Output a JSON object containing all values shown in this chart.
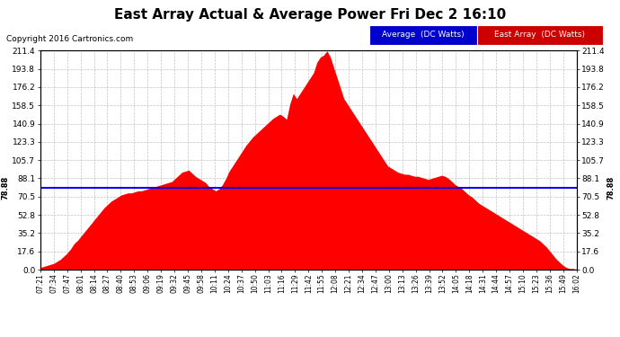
{
  "title": "East Array Actual & Average Power Fri Dec 2 16:10",
  "copyright": "Copyright 2016 Cartronics.com",
  "legend_label_avg": "Average  (DC Watts)",
  "legend_label_east": "East Array  (DC Watts)",
  "legend_color_avg": "#0000cc",
  "legend_color_east": "#cc0000",
  "avg_line_value": 78.88,
  "avg_line_label": "78.88",
  "y_ticks": [
    0.0,
    17.6,
    35.2,
    52.8,
    70.5,
    88.1,
    105.7,
    123.3,
    140.9,
    158.5,
    176.2,
    193.8,
    211.4
  ],
  "y_max": 211.4,
  "y_min": 0,
  "background_color": "#ffffff",
  "fill_color": "#ff0000",
  "avg_line_color": "#0000ff",
  "grid_color": "#bbbbbb",
  "title_fontsize": 11,
  "x_tick_labels": [
    "07:21",
    "07:34",
    "07:47",
    "08:01",
    "08:14",
    "08:27",
    "08:40",
    "08:53",
    "09:06",
    "09:19",
    "09:32",
    "09:45",
    "09:58",
    "10:11",
    "10:24",
    "10:37",
    "10:50",
    "11:03",
    "11:16",
    "11:29",
    "11:42",
    "11:55",
    "12:08",
    "12:21",
    "12:34",
    "12:47",
    "13:00",
    "13:13",
    "13:26",
    "13:39",
    "13:52",
    "14:05",
    "14:18",
    "14:31",
    "14:44",
    "14:57",
    "15:10",
    "15:23",
    "15:36",
    "15:49",
    "16:02"
  ],
  "power_values": [
    2,
    3,
    4,
    5,
    6,
    8,
    10,
    13,
    16,
    20,
    25,
    28,
    32,
    36,
    40,
    44,
    48,
    52,
    56,
    60,
    63,
    66,
    68,
    70,
    72,
    73,
    74,
    74,
    75,
    76,
    76,
    77,
    78,
    79,
    80,
    81,
    82,
    83,
    84,
    85,
    88,
    91,
    94,
    95,
    96,
    93,
    90,
    88,
    86,
    84,
    80,
    78,
    76,
    78,
    82,
    88,
    95,
    100,
    105,
    110,
    115,
    120,
    124,
    128,
    131,
    134,
    137,
    140,
    143,
    146,
    148,
    150,
    148,
    145,
    160,
    170,
    165,
    170,
    175,
    180,
    185,
    190,
    200,
    205,
    207,
    211,
    205,
    195,
    185,
    175,
    165,
    160,
    155,
    150,
    145,
    140,
    135,
    130,
    125,
    120,
    115,
    110,
    105,
    100,
    98,
    96,
    94,
    93,
    92,
    92,
    91,
    90,
    90,
    89,
    88,
    87,
    88,
    89,
    90,
    91,
    90,
    88,
    85,
    82,
    80,
    78,
    75,
    72,
    70,
    67,
    64,
    62,
    60,
    58,
    56,
    54,
    52,
    50,
    48,
    46,
    44,
    42,
    40,
    38,
    36,
    34,
    32,
    30,
    28,
    25,
    22,
    18,
    14,
    10,
    7,
    4,
    2,
    1,
    1,
    0
  ]
}
